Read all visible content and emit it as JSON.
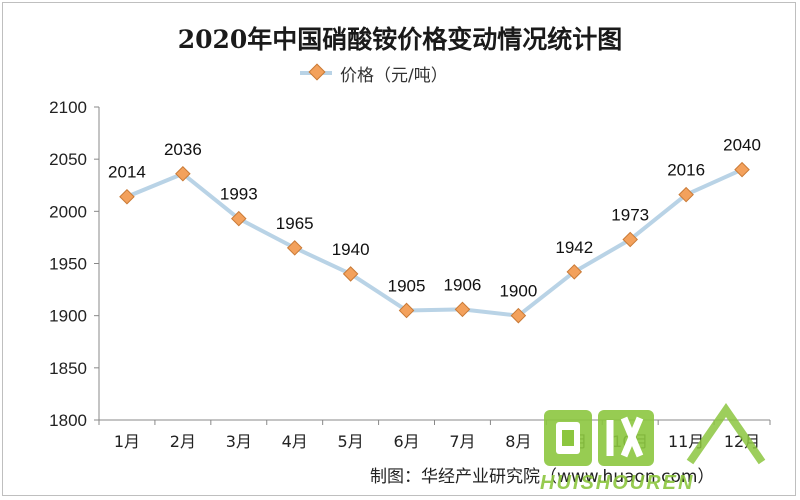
{
  "chart_data": {
    "type": "line",
    "title": "2020年中国硝酸铵价格变动情况统计图",
    "categories": [
      "1月",
      "2月",
      "3月",
      "4月",
      "5月",
      "6月",
      "7月",
      "8月",
      "9月",
      "10月",
      "11月",
      "12月"
    ],
    "series": [
      {
        "name": "价格（元/吨）",
        "values": [
          2014,
          2036,
          1993,
          1965,
          1940,
          1905,
          1906,
          1900,
          1942,
          1973,
          2016,
          2040
        ]
      }
    ],
    "ylim": [
      1800,
      2100
    ],
    "yticks": [
      1800,
      1850,
      1900,
      1950,
      2000,
      2050,
      2100
    ],
    "grid": false,
    "legend_position": "top",
    "line_color": "#b9d3e6",
    "marker_color": "#f3a15c",
    "source": "制图：华经产业研究院（www.huaon.com）"
  },
  "watermark": {
    "text": "HUISHOUREN",
    "color": "#8cc63f"
  }
}
